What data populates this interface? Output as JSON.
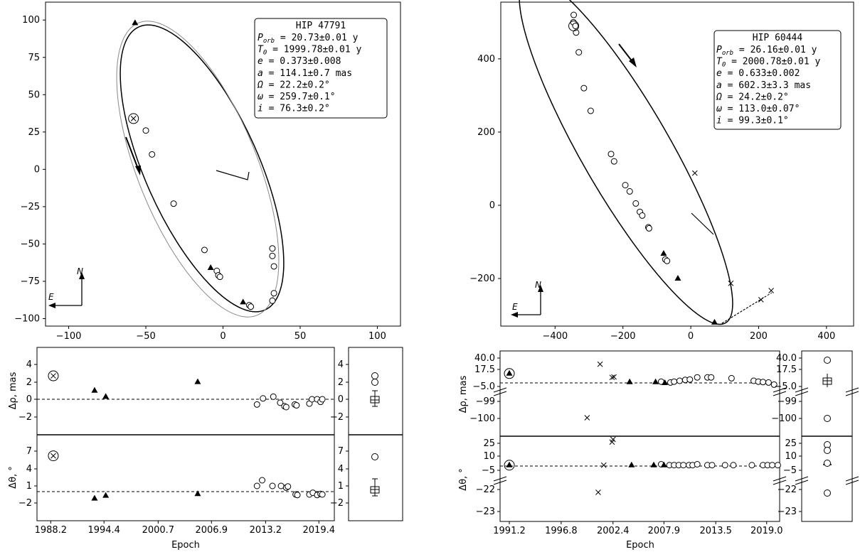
{
  "chart_data": [
    {
      "type": "scatter",
      "panel": "orbit",
      "star": "HIP 47791",
      "params": [
        {
          "sym": "P",
          "sub": "orb",
          "text": " = 20.73±0.01 y"
        },
        {
          "sym": "T",
          "sub": "0",
          "text": "  = 1999.78±0.01 y"
        },
        {
          "sym": "e",
          "sub": "",
          "text": "    = 0.373±0.008"
        },
        {
          "sym": "a",
          "sub": "",
          "text": "    = 114.1±0.7 mas"
        },
        {
          "sym": "Ω",
          "sub": "",
          "text": "    = 22.2±0.2°"
        },
        {
          "sym": "ω",
          "sub": "",
          "text": "    = 259.7±0.1°"
        },
        {
          "sym": "i",
          "sub": "",
          "text": "    = 76.3±0.2°"
        }
      ],
      "xlim": [
        -115,
        115
      ],
      "ylim": [
        -105,
        112
      ],
      "xticks": [
        -100,
        -50,
        0,
        50,
        100
      ],
      "yticks": [
        -100,
        -75,
        -50,
        -25,
        0,
        25,
        50,
        75,
        100
      ],
      "compass": {
        "n": "N",
        "e": "E"
      },
      "open_points": [
        [
          -50,
          26
        ],
        [
          -46,
          10
        ],
        [
          -32,
          -23
        ],
        [
          -12,
          -54
        ],
        [
          -4,
          -68
        ],
        [
          -3,
          -71
        ],
        [
          -2,
          -72
        ],
        [
          32,
          -53
        ],
        [
          32,
          -58
        ],
        [
          33,
          -65
        ],
        [
          33,
          -83
        ],
        [
          32,
          -88
        ],
        [
          17,
          -91
        ],
        [
          18,
          -92
        ]
      ],
      "triangle_points": [
        [
          -57,
          98
        ],
        [
          -8,
          -66
        ],
        [
          13,
          -89
        ]
      ],
      "circled_cross": [
        -58,
        34
      ]
    },
    {
      "type": "scatter",
      "panel": "residuals",
      "xlabel": "Epoch",
      "xticks": [
        "1988.2",
        "1994.4",
        "2000.7",
        "2006.9",
        "2013.2",
        "2019.4"
      ],
      "xrange": [
        1986.6,
        2021.2
      ],
      "rho": {
        "ylabel": "Δρ, mas",
        "yticks": [
          "4",
          "2",
          "0",
          "−2"
        ],
        "ylim": [
          -5,
          5.5
        ],
        "open": [
          [
            2012.2,
            -0.6
          ],
          [
            2012.9,
            0.1
          ],
          [
            2014.1,
            0.3
          ],
          [
            2014.9,
            -0.4
          ],
          [
            2015.4,
            -0.8
          ],
          [
            2015.6,
            -0.9
          ],
          [
            2016.6,
            -0.6
          ],
          [
            2016.8,
            -0.7
          ],
          [
            2018.3,
            -0.5
          ],
          [
            2018.6,
            0.0
          ],
          [
            2019.2,
            0.0
          ],
          [
            2019.6,
            -0.3
          ],
          [
            2019.8,
            0.0
          ]
        ],
        "tri": [
          [
            1993.3,
            1.0
          ],
          [
            1994.6,
            0.3
          ],
          [
            2005.3,
            2.0
          ]
        ],
        "cross": [
          [
            1988.5,
            2.7
          ]
        ]
      },
      "theta": {
        "ylabel": "Δθ, °",
        "yticks": [
          "7",
          "4",
          "1",
          "−2"
        ],
        "ylim": [
          -4,
          9.5
        ],
        "open": [
          [
            2012.2,
            1.0
          ],
          [
            2012.8,
            2.0
          ],
          [
            2014.0,
            1.0
          ],
          [
            2015.0,
            1.0
          ],
          [
            2015.6,
            0.7
          ],
          [
            2015.8,
            0.9
          ],
          [
            2016.7,
            -0.5
          ],
          [
            2016.9,
            -0.6
          ],
          [
            2018.3,
            -0.5
          ],
          [
            2018.7,
            -0.2
          ],
          [
            2019.2,
            -0.6
          ],
          [
            2019.6,
            -0.4
          ],
          [
            2019.8,
            -0.5
          ]
        ],
        "tri": [
          [
            1993.3,
            -1.2
          ],
          [
            1994.6,
            -0.7
          ],
          [
            2005.3,
            -0.4
          ]
        ],
        "cross": [
          [
            1988.5,
            6.3
          ]
        ]
      },
      "box_rho": {
        "yticks": [
          "4",
          "2",
          "0",
          "−2"
        ],
        "outliers": [
          2.7,
          2.0
        ]
      },
      "box_theta": {
        "yticks": [
          "7",
          "4",
          "1",
          "−2"
        ],
        "outliers": [
          6.3
        ]
      }
    },
    {
      "type": "scatter",
      "panel": "orbit",
      "star": "HIP 60444",
      "params": [
        {
          "sym": "P",
          "sub": "orb",
          "text": " = 26.16±0.01 y"
        },
        {
          "sym": "T",
          "sub": "0",
          "text": "  = 2000.78±0.01 y"
        },
        {
          "sym": "e",
          "sub": "",
          "text": "    = 0.633±0.002"
        },
        {
          "sym": "a",
          "sub": "",
          "text": "    = 602.3±3.3 mas"
        },
        {
          "sym": "Ω",
          "sub": "",
          "text": "    = 24.2±0.2°"
        },
        {
          "sym": "ω",
          "sub": "",
          "text": "    = 113.0±0.07°"
        },
        {
          "sym": "i",
          "sub": "",
          "text": "    = 99.3±0.1°"
        }
      ],
      "xlim": [
        -560,
        480
      ],
      "ylim": [
        -330,
        555
      ],
      "xticks": [
        -400,
        -200,
        0,
        200,
        400
      ],
      "yticks": [
        -200,
        0,
        200,
        400
      ],
      "compass": {
        "n": "N",
        "e": "E"
      },
      "open_points": [
        [
          -345,
          520
        ],
        [
          -346,
          500
        ],
        [
          -340,
          490
        ],
        [
          -338,
          472
        ],
        [
          -330,
          418
        ],
        [
          -315,
          320
        ],
        [
          -295,
          258
        ],
        [
          -235,
          140
        ],
        [
          -226,
          120
        ],
        [
          -193,
          55
        ],
        [
          -180,
          38
        ],
        [
          -162,
          5
        ],
        [
          -150,
          -18
        ],
        [
          -143,
          -28
        ],
        [
          -125,
          -60
        ],
        [
          -123,
          -63
        ],
        [
          -75,
          -148
        ],
        [
          -70,
          -152
        ]
      ],
      "triangle_points": [
        [
          -80,
          -132
        ],
        [
          -38,
          -200
        ],
        [
          70,
          -320
        ]
      ],
      "cross_points": [
        [
          12,
          88
        ],
        [
          118,
          -213
        ],
        [
          207,
          -258
        ],
        [
          237,
          -233
        ]
      ],
      "circled_point": [
        -345,
        490
      ]
    },
    {
      "type": "scatter",
      "panel": "residuals",
      "xlabel": "Epoch",
      "xticks": [
        "1991.2",
        "1996.8",
        "2002.4",
        "2007.9",
        "2013.5",
        "2019.0"
      ],
      "xrange": [
        1990.2,
        2020.4
      ],
      "rho": {
        "ylabel": "Δρ, mas",
        "yticks": [
          "40.0",
          "17.5",
          "−5.0",
          "−99",
          "−100"
        ],
        "open": [
          [
            2007.6,
            -2
          ],
          [
            2008.6,
            -4
          ],
          [
            2009.0,
            -2
          ],
          [
            2009.6,
            0
          ],
          [
            2010.2,
            2
          ],
          [
            2010.7,
            3
          ],
          [
            2011.5,
            8
          ],
          [
            2012.6,
            8
          ],
          [
            2013.0,
            8
          ],
          [
            2015.2,
            6
          ],
          [
            2017.6,
            0
          ],
          [
            2018.1,
            -2
          ],
          [
            2018.6,
            -3
          ],
          [
            2019.2,
            -4
          ],
          [
            2019.8,
            -9
          ]
        ],
        "tri": [
          [
            2004.2,
            -3
          ],
          [
            2007.0,
            -3
          ],
          [
            2008.0,
            -5
          ]
        ],
        "cross": [
          [
            1999.6,
            -97
          ],
          [
            2001.0,
            39
          ],
          [
            2002.3,
            8
          ],
          [
            2002.5,
            9
          ]
        ],
        "circled_tri": [
          1991.2,
          17
        ]
      },
      "theta": {
        "ylabel": "Δθ, °",
        "yticks": [
          "25",
          "10",
          "−5",
          "−22",
          "−23"
        ],
        "open": [
          [
            2007.6,
            -3
          ],
          [
            2008.5,
            -4
          ],
          [
            2009.0,
            -4
          ],
          [
            2009.5,
            -4
          ],
          [
            2010.0,
            -4
          ],
          [
            2010.6,
            -4
          ],
          [
            2011.0,
            -4
          ],
          [
            2011.5,
            -3
          ],
          [
            2012.6,
            -4
          ],
          [
            2013.1,
            -4
          ],
          [
            2014.5,
            -4
          ],
          [
            2015.4,
            -4
          ],
          [
            2017.4,
            -4
          ],
          [
            2018.6,
            -4
          ],
          [
            2019.1,
            -4
          ],
          [
            2019.6,
            -4
          ],
          [
            2020.2,
            -4
          ]
        ],
        "tri": [
          [
            2004.4,
            -4
          ],
          [
            2006.8,
            -4
          ],
          [
            2007.9,
            -4
          ]
        ],
        "cross": [
          [
            2000.8,
            -22
          ],
          [
            2001.4,
            -4
          ],
          [
            2002.3,
            22
          ],
          [
            2002.4,
            25
          ]
        ],
        "circled_tri": [
          1991.2,
          -4
        ]
      },
      "box_rho": {
        "yticks": [
          "40.0",
          "17.5",
          "−5.0",
          "−99",
          "−100"
        ],
        "outliers": [
          39,
          -97
        ]
      },
      "box_theta": {
        "yticks": [
          "25",
          "10",
          "−5",
          "−22",
          "−23"
        ],
        "outliers": [
          25,
          18,
          -4,
          -22
        ]
      }
    }
  ]
}
